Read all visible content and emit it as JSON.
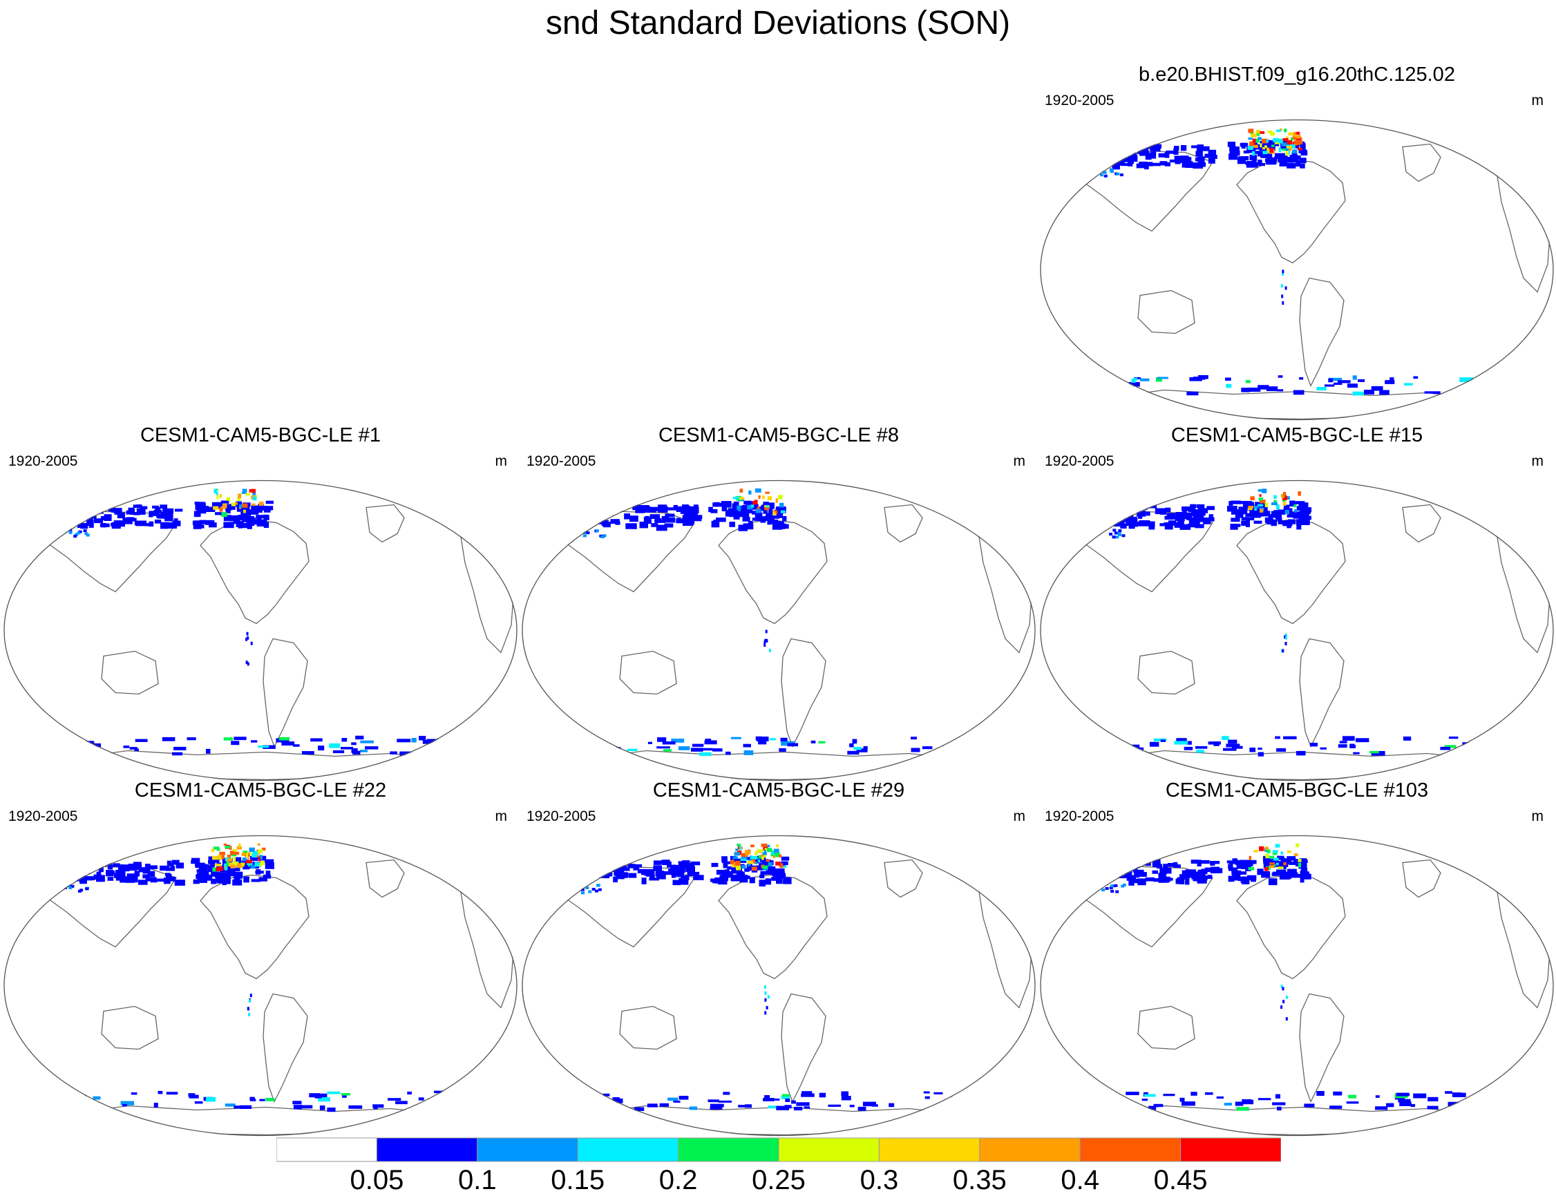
{
  "title": "snd Standard Deviations (SON)",
  "panels": [
    {
      "title": "b.e20.BHIST.f09_g16.20thC.125.02",
      "period": "1920-2005",
      "units": "m"
    },
    {
      "title": "CESM1-CAM5-BGC-LE #1",
      "period": "1920-2005",
      "units": "m"
    },
    {
      "title": "CESM1-CAM5-BGC-LE #8",
      "period": "1920-2005",
      "units": "m"
    },
    {
      "title": "CESM1-CAM5-BGC-LE #15",
      "period": "1920-2005",
      "units": "m"
    },
    {
      "title": "CESM1-CAM5-BGC-LE #22",
      "period": "1920-2005",
      "units": "m"
    },
    {
      "title": "CESM1-CAM5-BGC-LE #29",
      "period": "1920-2005",
      "units": "m"
    },
    {
      "title": "CESM1-CAM5-BGC-LE #103",
      "period": "1920-2005",
      "units": "m"
    }
  ],
  "colorbar": {
    "labels": [
      "0.05",
      "0.1",
      "0.15",
      "0.2",
      "0.25",
      "0.3",
      "0.35",
      "0.4",
      "0.45"
    ],
    "colors": [
      "#ffffff",
      "#0000ff",
      "#0096ff",
      "#00f0ff",
      "#00f050",
      "#d7ff00",
      "#ffd700",
      "#ffa000",
      "#ff5a00",
      "#ff0000"
    ]
  }
}
